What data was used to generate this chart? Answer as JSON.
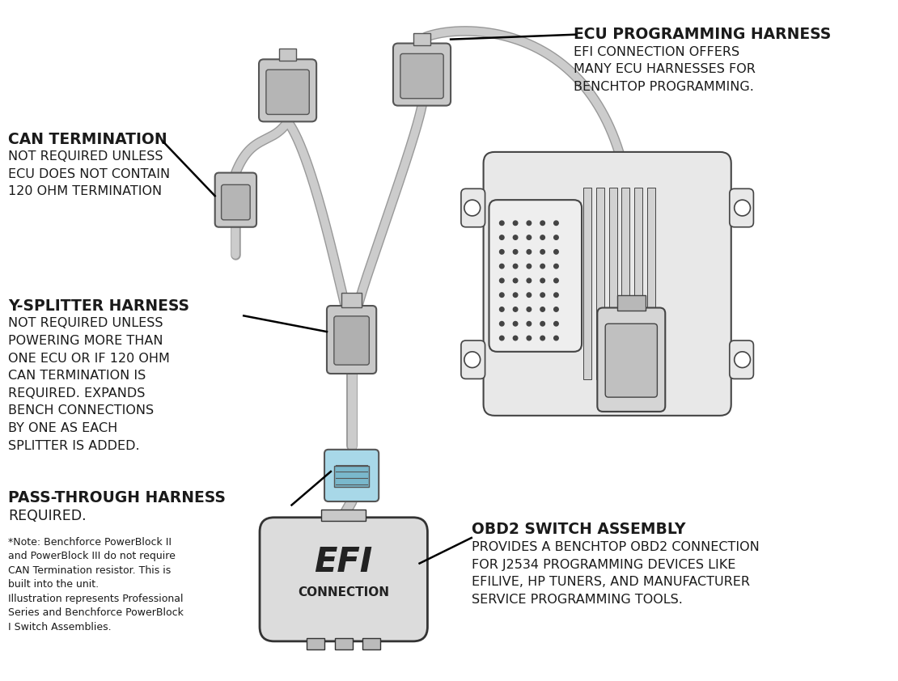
{
  "colors": {
    "bg_color": "#ffffff",
    "text_dark": "#1a1a1a",
    "connector_fill": "#c8c8c8",
    "connector_stroke": "#555555",
    "ecu_fill": "#e8e8e8",
    "ecu_stroke": "#444444",
    "wire_color": "#cccccc",
    "wire_outline": "#999999",
    "blue_part": "#a8d8e8",
    "line_color": "#000000"
  },
  "labels": {
    "can_term_title": "CAN TERMINATION",
    "can_term_body": "NOT REQUIRED UNLESS\nECU DOES NOT CONTAIN\n120 OHM TERMINATION",
    "y_splitter_title": "Y-SPLITTER HARNESS",
    "y_splitter_body": "NOT REQUIRED UNLESS\nPOWERING MORE THAN\nONE ECU OR IF 120 OHM\nCAN TERMINATION IS\nREQUIRED. EXPANDS\nBENCH CONNECTIONS\nBY ONE AS EACH\nSPLITTER IS ADDED.",
    "pass_through_title": "PASS-THROUGH HARNESS",
    "pass_through_body": "REQUIRED.",
    "note_text": "*Note: Benchforce PowerBlock II\nand PowerBlock III do not require\nCAN Termination resistor. This is\nbuilt into the unit.\nIllustration represents Professional\nSeries and Benchforce PowerBlock\nI Switch Assemblies.",
    "ecu_prog_title": "ECU PROGRAMMING HARNESS",
    "ecu_prog_body": "EFI CONNECTION OFFERS\nMANY ECU HARNESSES FOR\nBENCHTOP PROGRAMMING.",
    "obd2_title": "OBD2 SWITCH ASSEMBLY",
    "obd2_body": "PROVIDES A BENCHTOP OBD2 CONNECTION\nFOR J2534 PROGRAMMING DEVICES LIKE\nEFILIVE, HP TUNERS, AND MANUFACTURER\nSERVICE PROGRAMMING TOOLS."
  }
}
